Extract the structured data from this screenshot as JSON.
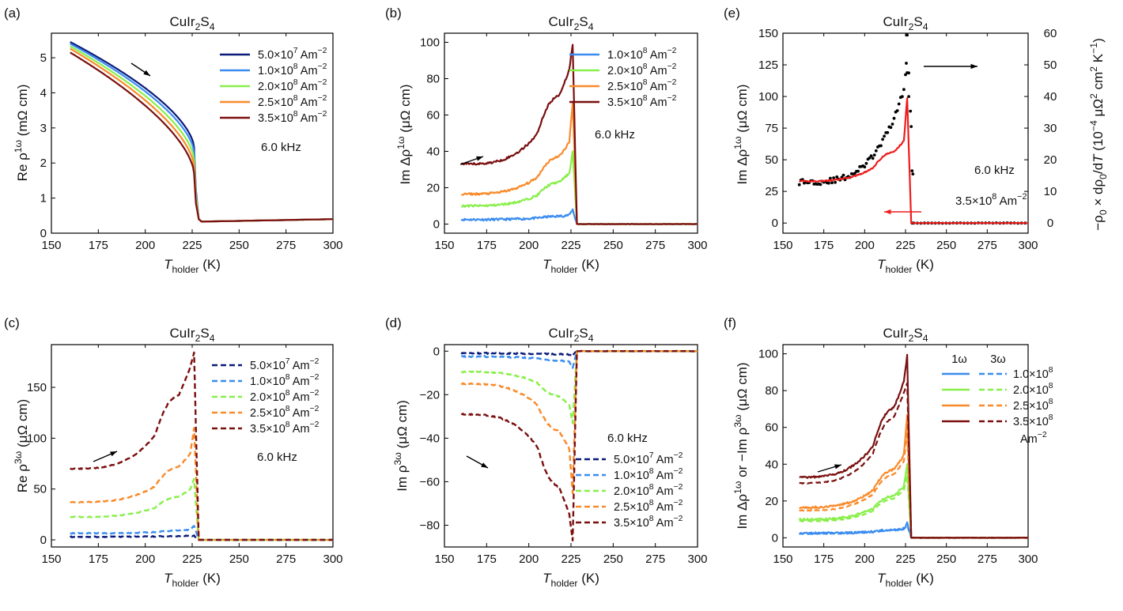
{
  "figure": {
    "material": "CuIr2S4",
    "temperature_range_K": [
      160,
      300
    ],
    "transition_K": 228
  },
  "colors": {
    "5.0e7": "#0a1a7a",
    "1.0e8": "#3a8cf0",
    "2.0e8": "#88ef4a",
    "2.5e8": "#f98a2a",
    "3.5e8": "#7a0f0f",
    "fit_red": "#ee1c1c",
    "dots_black": "#000000"
  },
  "chart_data": [
    {
      "panel": "(a)",
      "type": "line",
      "title": "CuIr2S4",
      "xlabel": "T holder (K)",
      "ylabel": "Re ρ 1ω (mΩ cm)",
      "xlim": [
        150,
        300
      ],
      "ylim": [
        0,
        5.7
      ],
      "xticks": [
        150,
        175,
        200,
        225,
        250,
        275,
        300
      ],
      "yticks": [
        0,
        1,
        2,
        3,
        4,
        5
      ],
      "style": "solid",
      "legend": [
        "5.0×10^7 Am^-2",
        "1.0×10^8 Am^-2",
        "2.0×10^8 Am^-2",
        "2.5×10^8 Am^-2",
        "3.5×10^8 Am^-2"
      ],
      "annotations": [
        "6.0 kHz"
      ],
      "series": [
        {
          "name": "5.0e7",
          "rho_at_160": 5.45,
          "rho_at_226": 2.45,
          "rho_high_T": [
            0.33,
            0.4
          ]
        },
        {
          "name": "1.0e8",
          "rho_at_160": 5.4,
          "rho_at_226": 2.3,
          "rho_high_T": [
            0.33,
            0.4
          ]
        },
        {
          "name": "2.0e8",
          "rho_at_160": 5.33,
          "rho_at_226": 2.1,
          "rho_high_T": [
            0.33,
            0.4
          ]
        },
        {
          "name": "2.5e8",
          "rho_at_160": 5.26,
          "rho_at_226": 1.9,
          "rho_high_T": [
            0.33,
            0.4
          ]
        },
        {
          "name": "3.5e8",
          "rho_at_160": 5.15,
          "rho_at_226": 1.7,
          "rho_high_T": [
            0.33,
            0.4
          ]
        }
      ]
    },
    {
      "panel": "(b)",
      "type": "line",
      "title": "CuIr2S4",
      "xlabel": "T holder (K)",
      "ylabel": "Im Δρ 1ω (μΩ cm)",
      "xlim": [
        150,
        300
      ],
      "ylim": [
        -5,
        105
      ],
      "xticks": [
        150,
        175,
        200,
        225,
        250,
        275,
        300
      ],
      "yticks": [
        0,
        20,
        40,
        60,
        80,
        100
      ],
      "style": "solid",
      "legend": [
        "1.0×10^8 Am^-2",
        "2.0×10^8 Am^-2",
        "2.5×10^8 Am^-2",
        "3.5×10^8 Am^-2"
      ],
      "annotations": [
        "6.0 kHz"
      ],
      "series": [
        {
          "name": "1.0e8",
          "base": 2.5,
          "near": 5,
          "peak": 8
        },
        {
          "name": "2.0e8",
          "base": 10,
          "near": 28,
          "peak": 40
        },
        {
          "name": "2.5e8",
          "base": 16.5,
          "near": 45,
          "peak": 67
        },
        {
          "name": "3.5e8",
          "base": 33,
          "near": 85,
          "peak": 99
        }
      ]
    },
    {
      "panel": "(c)",
      "type": "line",
      "title": "CuIr2S4",
      "xlabel": "T holder (K)",
      "ylabel": "Re ρ 3ω (μΩ cm)",
      "xlim": [
        150,
        300
      ],
      "ylim": [
        -7,
        192
      ],
      "xticks": [
        150,
        175,
        200,
        225,
        250,
        275,
        300
      ],
      "yticks": [
        0,
        50,
        100,
        150
      ],
      "style": "dashed",
      "legend": [
        "5.0×10^7 Am^-2",
        "1.0×10^8 Am^-2",
        "2.0×10^8 Am^-2",
        "2.5×10^8 Am^-2",
        "3.5×10^8 Am^-2"
      ],
      "annotations": [
        "6.0 kHz"
      ],
      "series": [
        {
          "name": "5.0e7",
          "base": 3,
          "near": 4,
          "peak": 4
        },
        {
          "name": "1.0e8",
          "base": 6.5,
          "near": 10,
          "peak": 14
        },
        {
          "name": "2.0e8",
          "base": 22.5,
          "near": 50,
          "peak": 60
        },
        {
          "name": "2.5e8",
          "base": 37,
          "near": 85,
          "peak": 110
        },
        {
          "name": "3.5e8",
          "base": 70,
          "near": 170,
          "peak": 184
        }
      ]
    },
    {
      "panel": "(d)",
      "type": "line",
      "title": "CuIr2S4",
      "xlabel": "T holder (K)",
      "ylabel": "Im ρ 3ω (μΩ cm)",
      "xlim": [
        150,
        300
      ],
      "ylim": [
        -90,
        3
      ],
      "xticks": [
        150,
        175,
        200,
        225,
        250,
        275,
        300
      ],
      "yticks": [
        0,
        -20,
        -40,
        -60,
        -80
      ],
      "style": "dashed",
      "legend": [
        "5.0×10^7 Am^-2",
        "1.0×10^8 Am^-2",
        "2.0×10^8 Am^-2",
        "2.5×10^8 Am^-2",
        "3.5×10^8 Am^-2"
      ],
      "annotations": [
        "6.0 kHz"
      ],
      "series": [
        {
          "name": "5.0e7",
          "base": -1,
          "near": -1.5,
          "peak": -2
        },
        {
          "name": "1.0e8",
          "base": -2.5,
          "near": -5,
          "peak": -8
        },
        {
          "name": "2.0e8",
          "base": -9.5,
          "near": -25,
          "peak": -33
        },
        {
          "name": "2.5e8",
          "base": -15,
          "near": -45,
          "peak": -65
        },
        {
          "name": "3.5e8",
          "base": -29,
          "near": -75,
          "peak": -87
        }
      ]
    },
    {
      "panel": "(e)",
      "type": "line+scatter",
      "title": "CuIr2S4",
      "xlabel": "T holder (K)",
      "ylabel": "Im Δρ 1ω (μΩ cm)",
      "ylabel_right": "−ρ0×dρ0/dT (10^-4 μΩ^2 cm^2 K^-1)",
      "xlim": [
        150,
        300
      ],
      "ylim": [
        -8,
        150
      ],
      "ylim_right": [
        -3.2,
        60
      ],
      "xticks": [
        150,
        175,
        200,
        225,
        250,
        275,
        300
      ],
      "yticks": [
        0,
        25,
        50,
        75,
        100,
        125,
        150
      ],
      "yticks_right": [
        0,
        10,
        20,
        30,
        40,
        50,
        60
      ],
      "annotations": [
        "6.0 kHz",
        "3.5×10^8 Am^-2"
      ],
      "series": [
        {
          "name": "Im Δρ1ω 3.5e8 (left axis)",
          "base": 33,
          "peak": 99,
          "style": "solid red"
        },
        {
          "name": "-ρ0 dρ0/dT (right axis)",
          "base": 13,
          "peak": 59,
          "style": "black dots"
        }
      ]
    },
    {
      "panel": "(f)",
      "type": "line",
      "title": "CuIr2S4",
      "xlabel": "T holder (K)",
      "ylabel": "Im Δρ 1ω or −Im ρ 3ω (μΩ cm)",
      "xlim": [
        150,
        300
      ],
      "ylim": [
        -5,
        105
      ],
      "xticks": [
        150,
        175,
        200,
        225,
        250,
        275,
        300
      ],
      "yticks": [
        0,
        20,
        40,
        60,
        80,
        100
      ],
      "legend_header": [
        "1ω",
        "3ω"
      ],
      "legend": [
        "1.0×10^8",
        "2.0×10^8",
        "2.5×10^8",
        "3.5×10^8"
      ],
      "legend_unit": "Am^-2",
      "series": [
        {
          "name": "1.0e8",
          "base": 2.5,
          "near": 5,
          "peak": 8
        },
        {
          "name": "2.0e8",
          "base": 10,
          "near": 28,
          "peak": 40
        },
        {
          "name": "2.5e8",
          "base": 16.5,
          "near": 45,
          "peak": 67
        },
        {
          "name": "3.5e8",
          "base": 33,
          "near": 85,
          "peak": 99
        }
      ]
    }
  ]
}
